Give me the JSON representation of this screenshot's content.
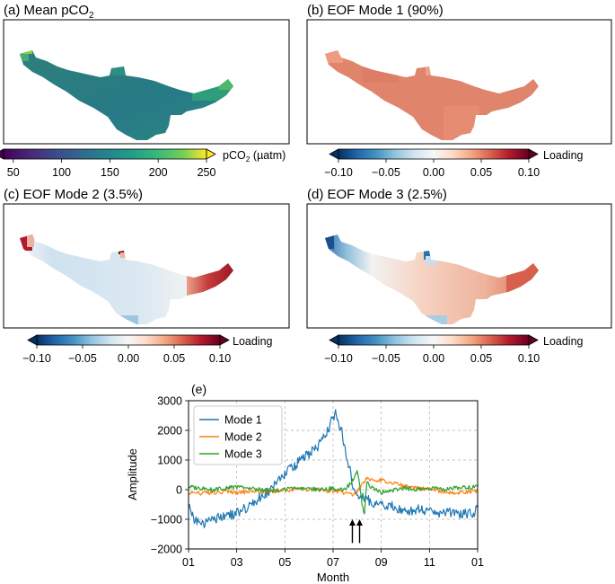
{
  "chart_data": [
    {
      "type": "heatmap",
      "title": "(a) Mean pCO",
      "title_sub": "2",
      "colorbar": {
        "label": "pCO",
        "label_sub": "2",
        "label_unit": " (µatm)",
        "ticks": [
          "50",
          "100",
          "150",
          "200",
          "250"
        ],
        "range": [
          40,
          250
        ],
        "colormap": "viridis"
      },
      "colors": {
        "body": "#287c85",
        "edge_hi": "#3fb06e",
        "tip": "#6dcc4f"
      }
    },
    {
      "type": "heatmap",
      "title": "(b) EOF Mode 1  (90%)",
      "colorbar": {
        "label": "Loading",
        "ticks": [
          "−0.10",
          "−0.05",
          "0.00",
          "0.05",
          "0.10"
        ],
        "range": [
          -0.1,
          0.1
        ],
        "colormap": "RdBu_r"
      },
      "colors": {
        "body": "#e0826a",
        "light": "#f0b8a0"
      }
    },
    {
      "type": "heatmap",
      "title": "(c) EOF Mode 2  (3.5%)",
      "colorbar": {
        "label": "Loading",
        "ticks": [
          "−0.10",
          "−0.05",
          "0.00",
          "0.05",
          "0.10"
        ],
        "range": [
          -0.1,
          0.1
        ],
        "colormap": "RdBu_r"
      },
      "colors": {
        "body": "#d9e8f2",
        "tip": "#b2182b",
        "head": "#b2182b"
      }
    },
    {
      "type": "heatmap",
      "title": "(d) EOF Mode 3  (2.5%)",
      "colorbar": {
        "label": "Loading",
        "ticks": [
          "−0.10",
          "−0.05",
          "0.00",
          "0.05",
          "0.10"
        ],
        "range": [
          -0.1,
          0.1
        ],
        "colormap": "RdBu_r"
      },
      "colors": {
        "body": "#f5d3c2",
        "head": "#2166ac",
        "tip": "#d6604d"
      }
    },
    {
      "type": "line",
      "title": "(e)",
      "xlabel": "Month",
      "ylabel": "Amplitude",
      "xticks": [
        "01",
        "03",
        "05",
        "07",
        "09",
        "11",
        "01"
      ],
      "yticks": [
        "3000",
        "2000",
        "1000",
        "0",
        "−1000",
        "−2000"
      ],
      "xlim": [
        1,
        13
      ],
      "ylim": [
        -2000,
        3000
      ],
      "grid": true,
      "legend": "top-left",
      "series": [
        {
          "name": "Mode 1",
          "color": "#1f77b4",
          "x": [
            1.0,
            1.2,
            1.5,
            1.8,
            2.0,
            2.3,
            2.6,
            3.0,
            3.3,
            3.6,
            3.9,
            4.2,
            4.4,
            4.6,
            4.8,
            5.0,
            5.2,
            5.4,
            5.6,
            5.8,
            6.0,
            6.2,
            6.4,
            6.6,
            6.8,
            7.0,
            7.1,
            7.2,
            7.3,
            7.4,
            7.5,
            7.6,
            7.7,
            7.8,
            7.9,
            8.0,
            8.2,
            8.4,
            8.6,
            8.8,
            9.0,
            9.3,
            9.6,
            9.9,
            10.2,
            10.5,
            10.8,
            11.1,
            11.4,
            11.7,
            12.0,
            12.3,
            12.6,
            12.9,
            13.0
          ],
          "values": [
            -500,
            -950,
            -1200,
            -1100,
            -1000,
            -950,
            -900,
            -800,
            -650,
            -500,
            -300,
            -150,
            0,
            200,
            350,
            500,
            700,
            800,
            950,
            1100,
            1200,
            1350,
            1500,
            1750,
            2000,
            2450,
            2550,
            2300,
            2100,
            1800,
            1400,
            1000,
            650,
            200,
            -100,
            -200,
            -250,
            -350,
            -400,
            -450,
            -500,
            -550,
            -600,
            -650,
            -700,
            -650,
            -700,
            -750,
            -800,
            -800,
            -750,
            -850,
            -800,
            -750,
            -500
          ]
        },
        {
          "name": "Mode 2",
          "color": "#ff7f0e",
          "x": [
            1.0,
            1.5,
            2.0,
            2.5,
            3.0,
            3.5,
            4.0,
            4.5,
            5.0,
            5.5,
            6.0,
            6.5,
            7.0,
            7.5,
            7.8,
            8.0,
            8.2,
            8.4,
            8.6,
            8.8,
            9.0,
            9.3,
            9.6,
            10.0,
            10.5,
            11.0,
            11.5,
            12.0,
            12.5,
            13.0
          ],
          "values": [
            -100,
            -120,
            -100,
            -80,
            -100,
            -80,
            -60,
            -50,
            -30,
            0,
            20,
            0,
            -50,
            -100,
            -200,
            -100,
            200,
            400,
            300,
            250,
            350,
            250,
            200,
            100,
            50,
            0,
            -50,
            -100,
            -80,
            -50
          ]
        },
        {
          "name": "Mode 3",
          "color": "#2ca02c",
          "x": [
            1.0,
            1.5,
            2.0,
            2.5,
            3.0,
            3.5,
            4.0,
            4.5,
            5.0,
            5.5,
            6.0,
            6.5,
            7.0,
            7.5,
            7.8,
            7.9,
            8.0,
            8.1,
            8.2,
            8.3,
            8.4,
            8.5,
            8.8,
            9.0,
            9.3,
            9.6,
            10.0,
            10.5,
            11.0,
            11.5,
            12.0,
            12.5,
            13.0
          ],
          "values": [
            100,
            50,
            0,
            50,
            100,
            50,
            0,
            -30,
            0,
            50,
            30,
            0,
            50,
            0,
            300,
            500,
            600,
            200,
            -500,
            -800,
            300,
            100,
            0,
            -100,
            -50,
            0,
            50,
            0,
            50,
            20,
            50,
            80,
            100
          ]
        }
      ],
      "annotations": [
        {
          "type": "arrow",
          "x": 7.8,
          "y_from": -1800,
          "y_to": -1000
        },
        {
          "type": "arrow",
          "x": 8.1,
          "y_from": -1800,
          "y_to": -1000
        }
      ]
    }
  ]
}
